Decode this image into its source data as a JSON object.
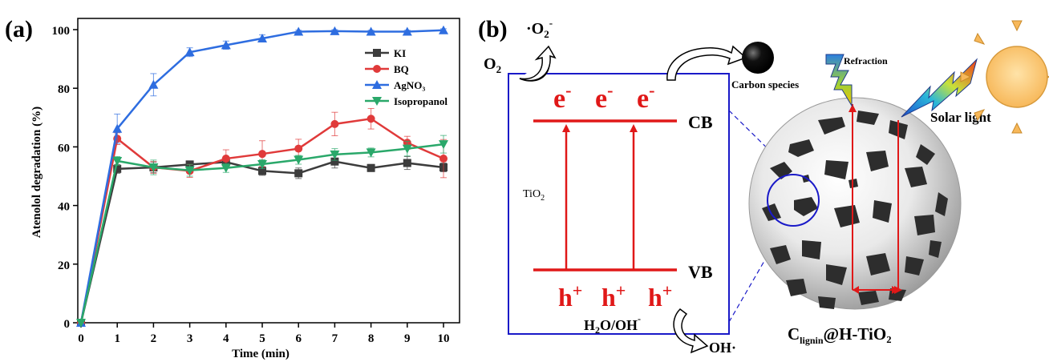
{
  "panel_a": {
    "label": "(a)"
  },
  "panel_b": {
    "label": "(b)",
    "superoxide": "·O",
    "superoxide_sub": "2",
    "superoxide_sup": "-",
    "oxygen": "O",
    "oxygen_sub": "2",
    "carbon_species": "Carbon species",
    "refraction": "Refraction",
    "solar_light": "Solar light",
    "electron": "e",
    "electron_sup": "-",
    "hole": "h",
    "hole_sup": "+",
    "cb": "CB",
    "vb": "VB",
    "tio2": "TiO",
    "tio2_sub": "2",
    "water": "H",
    "water_sub": "2",
    "water_rest": "O/OH",
    "water_sup": "-",
    "hydroxyl": "OH·",
    "catalyst_c": "C",
    "catalyst_sub": "lignin",
    "catalyst_rest": "@H-TiO₂"
  },
  "chart_data": {
    "type": "line",
    "xlabel": "Time (min)",
    "ylabel": "Atenolol degradation (%)",
    "xlim": [
      0,
      10
    ],
    "ylim": [
      0,
      100
    ],
    "xticks": [
      "0",
      "1",
      "2",
      "3",
      "4",
      "5",
      "6",
      "7",
      "8",
      "9",
      "10"
    ],
    "yticks": [
      "0",
      "20",
      "40",
      "60",
      "80",
      "100"
    ],
    "x": [
      0,
      1,
      2,
      3,
      4,
      5,
      6,
      7,
      8,
      9,
      10
    ],
    "legend_position": "top-right",
    "grid": false,
    "series": [
      {
        "name": "KI",
        "color": "#3c3c3c",
        "marker": "square",
        "values": [
          0,
          52.5,
          53,
          54,
          54.8,
          51.8,
          51,
          55,
          52.8,
          54.5,
          53
        ],
        "errors": [
          0,
          1.5,
          1.8,
          1.2,
          1.5,
          1.5,
          1.8,
          2.2,
          1.2,
          2.2,
          1.5
        ]
      },
      {
        "name": "BQ",
        "color": "#e03a3a",
        "marker": "circle",
        "values": [
          0,
          62.8,
          53,
          51.8,
          56,
          57.6,
          59.4,
          67.8,
          69.6,
          61.4,
          56
        ],
        "errors": [
          0,
          2,
          2,
          2.2,
          3,
          4.5,
          3.2,
          4,
          3.5,
          2.2,
          6.5
        ]
      },
      {
        "name": "AgNO₃",
        "color": "#2e6de0",
        "marker": "triangle-up",
        "values": [
          0,
          66.2,
          81.2,
          92.3,
          94.7,
          97,
          99.3,
          99.5,
          99.3,
          99.3,
          99.8
        ],
        "errors": [
          0,
          5,
          3.8,
          1.5,
          1.4,
          1.2,
          0.5,
          0.5,
          0.5,
          0.5,
          0.5
        ]
      },
      {
        "name": "Isopropanol",
        "color": "#2aa86a",
        "marker": "triangle-down",
        "values": [
          0,
          55.2,
          53,
          52,
          52.8,
          54.1,
          55.6,
          57.4,
          58.1,
          59.4,
          60.9
        ],
        "errors": [
          0,
          1.5,
          2.5,
          2,
          1.5,
          1.5,
          1.5,
          2,
          1.5,
          2.5,
          3
        ]
      }
    ]
  }
}
